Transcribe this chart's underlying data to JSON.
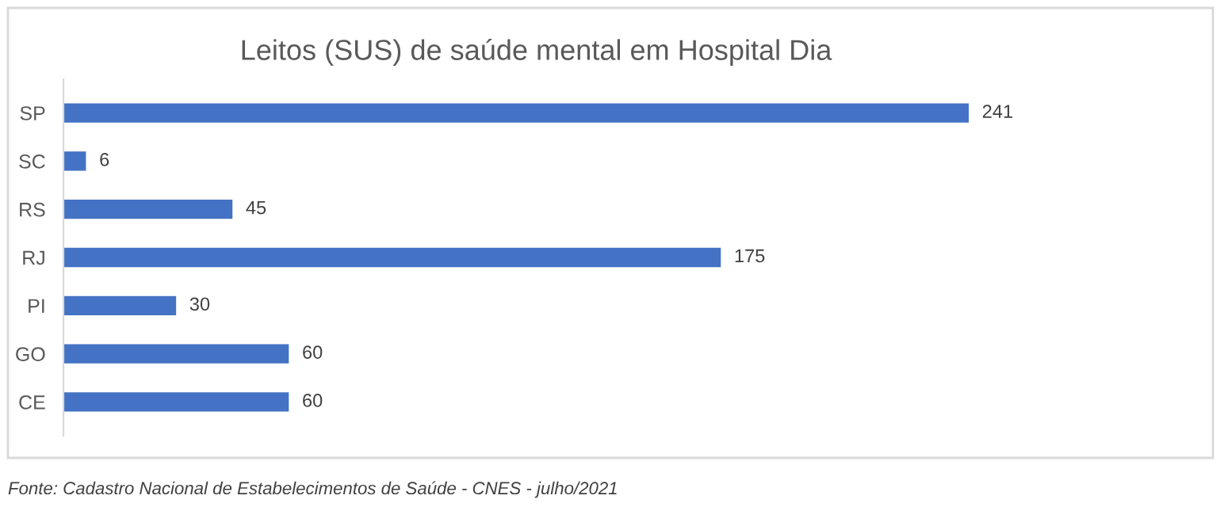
{
  "chart_data": {
    "type": "bar",
    "orientation": "horizontal",
    "title": "Leitos (SUS) de saúde mental em Hospital Dia",
    "categories": [
      "SP",
      "SC",
      "RS",
      "RJ",
      "PI",
      "GO",
      "CE"
    ],
    "values": [
      241,
      6,
      45,
      175,
      30,
      60,
      60
    ],
    "color": "#4472c4",
    "data_labels": true,
    "tick_labels": "y",
    "annotations": [
      "Fonte: Cadastro Nacional de Estabelecimentos de Saúde - CNES - julho/2021"
    ]
  }
}
